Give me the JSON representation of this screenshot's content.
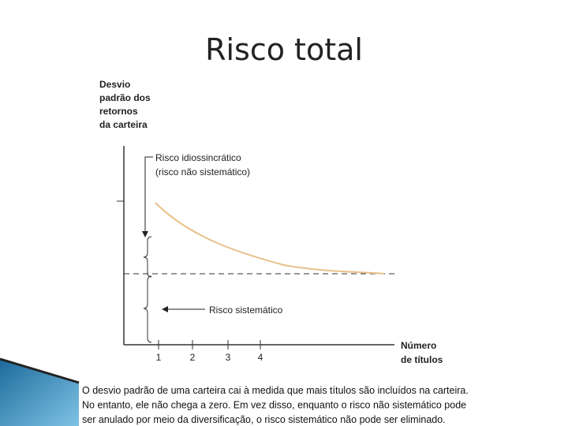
{
  "title": "Risco total",
  "y_axis_label": [
    "Desvio",
    "padrão dos",
    "retornos",
    "da carteira"
  ],
  "x_axis_label": [
    "Número",
    "de títulos"
  ],
  "x_ticks": [
    1,
    2,
    3,
    4
  ],
  "annotations": {
    "idiosyncratic": [
      "Risco idiossincrático",
      "(risco não sistemático)"
    ],
    "systematic": "Risco sistemático"
  },
  "caption": [
    "O desvio padrão de uma carteira cai à medida que mais títulos são incluídos na carteira.",
    "No entanto, ele não chega a zero. Em vez disso, enquanto o risco não sistemático pode",
    "ser anulado por meio da diversificação, o risco sistemático não pode ser eliminado."
  ]
}
